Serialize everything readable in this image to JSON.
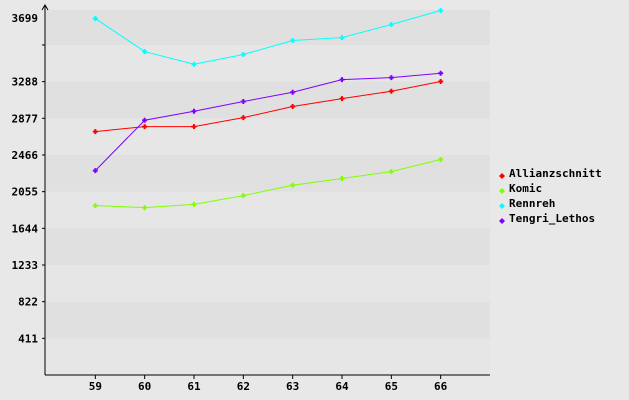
{
  "chart_data": {
    "type": "line",
    "title": "",
    "xlabel": "",
    "ylabel": "",
    "categories": [
      59,
      60,
      61,
      62,
      63,
      64,
      65,
      66
    ],
    "xlim": [
      58,
      67
    ],
    "ylim": [
      0,
      4085
    ],
    "yticks": [
      411,
      822,
      1233,
      1644,
      2055,
      2466,
      2877,
      3288,
      3699
    ],
    "grid": "horizontal bands",
    "legend": "right",
    "series": [
      {
        "name": "Allianzschnitt",
        "color": "#ff0000",
        "values": [
          2728,
          2784,
          2784,
          2885,
          3009,
          3098,
          3180,
          3289
        ]
      },
      {
        "name": "Komic",
        "color": "#80ff00",
        "values": [
          1899,
          1876,
          1913,
          2011,
          2127,
          2202,
          2280,
          2415
        ]
      },
      {
        "name": "Rennreh",
        "color": "#00ffff",
        "values": [
          3995,
          3625,
          3483,
          3592,
          3749,
          3782,
          3928,
          4085
        ]
      },
      {
        "name": "Tengri_Lethos",
        "color": "#8000ff",
        "values": [
          2291,
          2855,
          2956,
          3065,
          3169,
          3311,
          3333,
          3382
        ]
      }
    ]
  }
}
